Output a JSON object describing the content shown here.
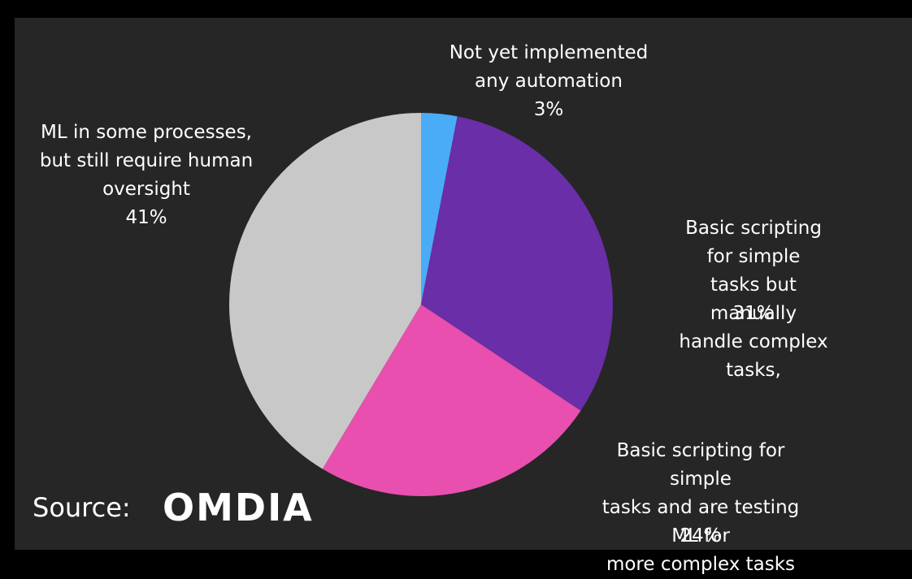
{
  "chart_data": {
    "type": "pie",
    "categories": [
      "Not yet implemented\nany automation",
      "Basic scripting for simple\ntasks but manually\nhandle complex tasks,",
      "Basic scripting for simple\ntasks and are testing ML for\nmore complex tasks",
      "ML in some processes,\nbut still require human\noversight"
    ],
    "values": [
      3,
      31,
      24,
      41
    ],
    "value_labels": [
      "3%",
      "31%",
      "24%",
      "41%"
    ],
    "colors": [
      "#4aabf7",
      "#6a2ea8",
      "#e84fae",
      "#c8c8c8"
    ]
  },
  "source": {
    "label": "Source:",
    "logo": "OMDIA"
  }
}
